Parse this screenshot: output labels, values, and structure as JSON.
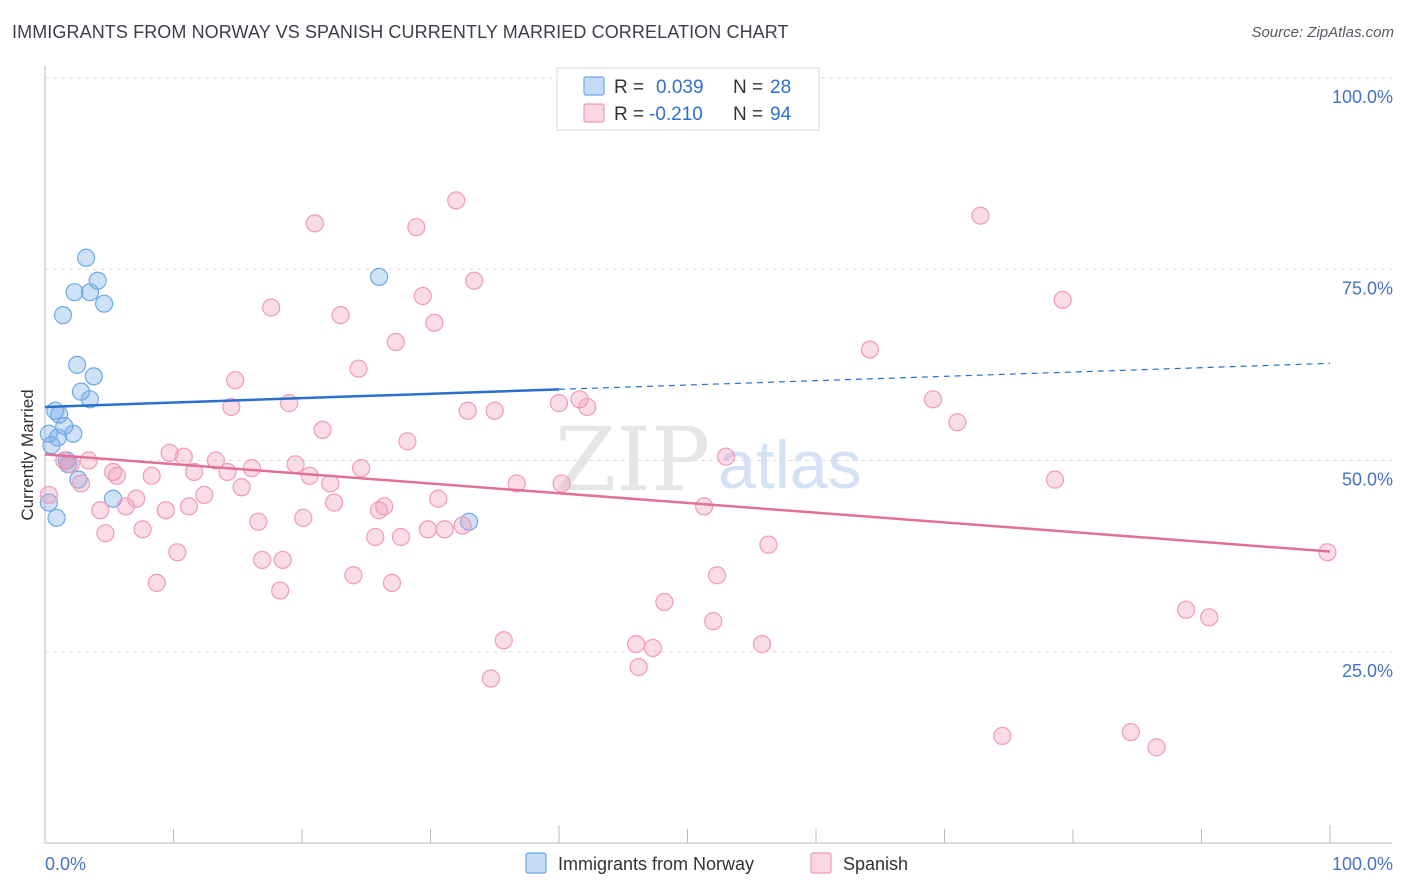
{
  "header": {
    "title": "IMMIGRANTS FROM NORWAY VS SPANISH CURRENTLY MARRIED CORRELATION CHART",
    "source": "Source: ZipAtlas.com"
  },
  "legend_top": {
    "rows": [
      {
        "r_label": "R =",
        "r_value": "0.039",
        "n_label": "N =",
        "n_value": "28",
        "color": "#6fa8e8"
      },
      {
        "r_label": "R =",
        "r_value": "-0.210",
        "n_label": "N =",
        "n_value": "94",
        "color": "#f09ab8"
      }
    ]
  },
  "legend_bottom": {
    "items": [
      {
        "label": "Immigrants from Norway",
        "color": "#6fa8e8"
      },
      {
        "label": "Spanish",
        "color": "#f09ab8"
      }
    ]
  },
  "watermark": {
    "zip": "ZIP",
    "atlas": "atlas"
  },
  "chart_data": {
    "type": "scatter",
    "title": "IMMIGRANTS FROM NORWAY VS SPANISH CURRENTLY MARRIED CORRELATION CHART",
    "xlabel": "",
    "ylabel": "Currently Married",
    "xlim": [
      0,
      100
    ],
    "ylim": [
      0,
      100
    ],
    "x_tick_labels": [
      "0.0%",
      "100.0%"
    ],
    "y_tick_labels": [
      "100.0%",
      "75.0%",
      "50.0%",
      "25.0%"
    ],
    "y_tick_values": [
      100,
      75,
      50,
      25
    ],
    "grid": true,
    "series": [
      {
        "name": "Immigrants from Norway",
        "color": "#6fa8e8",
        "trend": {
          "x": [
            0,
            40
          ],
          "y": [
            57.0,
            59.3
          ],
          "dashed_to": [
            100,
            62.7
          ]
        },
        "points": [
          [
            0.3,
            53.5
          ],
          [
            0.3,
            44.5
          ],
          [
            0.5,
            52.0
          ],
          [
            0.8,
            56.5
          ],
          [
            0.9,
            42.5
          ],
          [
            1.0,
            53.0
          ],
          [
            1.1,
            56.0
          ],
          [
            1.4,
            69.0
          ],
          [
            1.5,
            54.5
          ],
          [
            1.7,
            50.0
          ],
          [
            1.8,
            49.5
          ],
          [
            2.2,
            53.5
          ],
          [
            2.3,
            72.0
          ],
          [
            2.5,
            62.5
          ],
          [
            2.6,
            47.5
          ],
          [
            2.8,
            59.0
          ],
          [
            3.2,
            76.5
          ],
          [
            3.5,
            58.0
          ],
          [
            3.5,
            72.0
          ],
          [
            3.8,
            61.0
          ],
          [
            4.1,
            73.5
          ],
          [
            4.6,
            70.5
          ],
          [
            5.3,
            45.0
          ],
          [
            26.0,
            74.0
          ],
          [
            33.0,
            42.0
          ]
        ]
      },
      {
        "name": "Spanish",
        "color": "#f09ab8",
        "trend": {
          "x": [
            0,
            100
          ],
          "y": [
            50.8,
            38.1
          ]
        },
        "points": [
          [
            0.3,
            45.5
          ],
          [
            1.5,
            50.0
          ],
          [
            2.0,
            49.5
          ],
          [
            2.8,
            47.0
          ],
          [
            3.4,
            50.0
          ],
          [
            4.3,
            43.5
          ],
          [
            4.7,
            40.5
          ],
          [
            5.3,
            48.5
          ],
          [
            5.6,
            48.0
          ],
          [
            6.3,
            44.0
          ],
          [
            7.1,
            45.0
          ],
          [
            7.6,
            41.0
          ],
          [
            8.3,
            48.0
          ],
          [
            8.7,
            34.0
          ],
          [
            9.4,
            43.5
          ],
          [
            9.7,
            51.0
          ],
          [
            10.3,
            38.0
          ],
          [
            10.8,
            50.5
          ],
          [
            11.2,
            44.0
          ],
          [
            11.6,
            48.5
          ],
          [
            12.4,
            45.5
          ],
          [
            13.3,
            50.0
          ],
          [
            14.2,
            48.5
          ],
          [
            14.5,
            57.0
          ],
          [
            14.8,
            60.5
          ],
          [
            15.3,
            46.5
          ],
          [
            16.1,
            49.0
          ],
          [
            16.6,
            42.0
          ],
          [
            16.9,
            37.0
          ],
          [
            17.6,
            70.0
          ],
          [
            18.3,
            33.0
          ],
          [
            18.5,
            37.0
          ],
          [
            19.0,
            57.5
          ],
          [
            19.5,
            49.5
          ],
          [
            20.1,
            42.5
          ],
          [
            20.6,
            48.0
          ],
          [
            21.0,
            81.0
          ],
          [
            21.6,
            54.0
          ],
          [
            22.2,
            47.0
          ],
          [
            22.5,
            44.5
          ],
          [
            23.0,
            69.0
          ],
          [
            24.0,
            35.0
          ],
          [
            24.4,
            62.0
          ],
          [
            24.6,
            49.0
          ],
          [
            25.7,
            40.0
          ],
          [
            26.0,
            43.5
          ],
          [
            26.4,
            44.0
          ],
          [
            27.0,
            34.0
          ],
          [
            27.3,
            65.5
          ],
          [
            27.7,
            40.0
          ],
          [
            28.2,
            52.5
          ],
          [
            28.9,
            80.5
          ],
          [
            29.4,
            71.5
          ],
          [
            29.8,
            41.0
          ],
          [
            30.3,
            68.0
          ],
          [
            30.6,
            45.0
          ],
          [
            31.1,
            41.0
          ],
          [
            32.0,
            84.0
          ],
          [
            32.5,
            41.5
          ],
          [
            32.9,
            56.5
          ],
          [
            33.4,
            73.5
          ],
          [
            34.7,
            21.5
          ],
          [
            35.0,
            56.5
          ],
          [
            35.7,
            26.5
          ],
          [
            36.7,
            47.0
          ],
          [
            40.0,
            57.5
          ],
          [
            40.2,
            47.0
          ],
          [
            41.6,
            58.0
          ],
          [
            42.2,
            57.0
          ],
          [
            46.0,
            26.0
          ],
          [
            46.2,
            23.0
          ],
          [
            47.3,
            25.5
          ],
          [
            48.2,
            31.5
          ],
          [
            51.3,
            44.0
          ],
          [
            52.0,
            29.0
          ],
          [
            52.3,
            35.0
          ],
          [
            53.0,
            50.5
          ],
          [
            55.8,
            26.0
          ],
          [
            56.3,
            39.0
          ],
          [
            64.2,
            64.5
          ],
          [
            69.1,
            58.0
          ],
          [
            71.0,
            55.0
          ],
          [
            72.8,
            82.0
          ],
          [
            74.5,
            14.0
          ],
          [
            78.6,
            47.5
          ],
          [
            79.2,
            71.0
          ],
          [
            84.5,
            14.5
          ],
          [
            86.5,
            12.5
          ],
          [
            88.8,
            30.5
          ],
          [
            90.6,
            29.5
          ],
          [
            99.8,
            38.0
          ]
        ]
      }
    ]
  }
}
